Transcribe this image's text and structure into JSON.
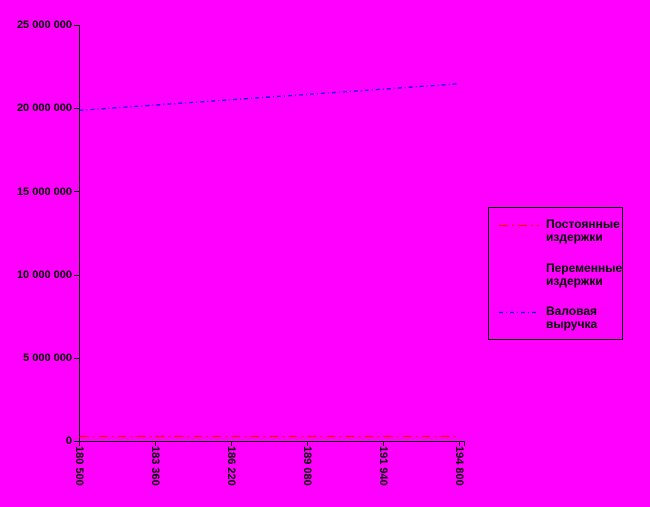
{
  "colors": {
    "background": "#FF00FF",
    "axis": "#000000",
    "text": "#000000"
  },
  "chart_data": {
    "type": "line",
    "title": "",
    "xlabel": "",
    "ylabel": "",
    "x": [
      180500,
      183360,
      186220,
      189080,
      191940,
      194800
    ],
    "xticks": [
      "180 500",
      "183 360",
      "186 220",
      "189 080",
      "191 940",
      "194 800"
    ],
    "yticks": [
      "25 000 000",
      "20 000 000",
      "15 000 000",
      "10 000 000",
      "5 000 000",
      "0"
    ],
    "ylim": [
      0,
      25000000
    ],
    "grid": false,
    "legend_position": "right",
    "series": [
      {
        "name": "Постоянные издержки",
        "color": "#FF0000",
        "dash": "dash-dot",
        "values": [
          300000,
          300000,
          300000,
          300000,
          300000,
          300000
        ]
      },
      {
        "name": "Переменные издержки",
        "color": "#FF00FF",
        "dash": "dash-dot",
        "visible": false,
        "values": null
      },
      {
        "name": "Валовая выручка",
        "color": "#0000FF",
        "dash": "fine-dash-dot",
        "values": [
          19900000,
          20220000,
          20540000,
          20860000,
          21180000,
          21500000
        ]
      }
    ]
  }
}
